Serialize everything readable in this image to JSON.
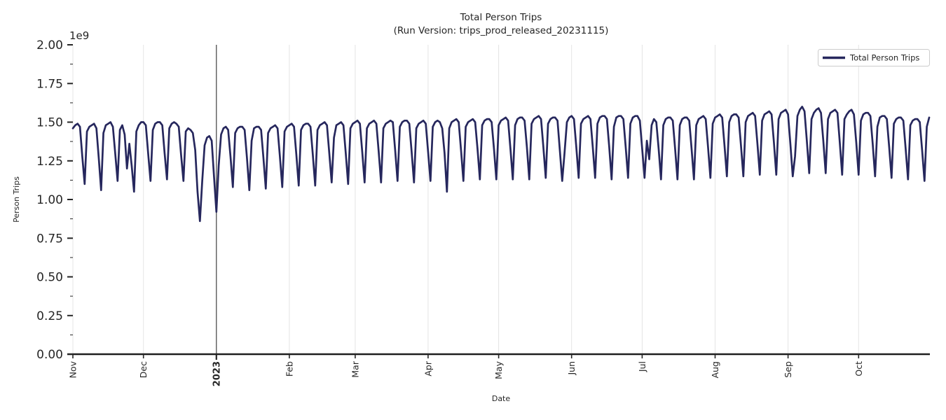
{
  "chart_data": {
    "type": "line",
    "title": "Total Person Trips",
    "subtitle": "(Run Version: trips_prod_released_20231115)",
    "xlabel": "Date",
    "ylabel": "Person Trips",
    "y_offset_label": "1e9",
    "y_unit_multiplier": 1000000000,
    "ylim": [
      0,
      2
    ],
    "y_tick_step": 0.25,
    "y_minor_tick_step": 0.125,
    "y_ticks": [
      "0.00",
      "0.25",
      "0.50",
      "0.75",
      "1.00",
      "1.25",
      "1.50",
      "1.75",
      "2.00"
    ],
    "x_ticks": [
      {
        "label": "Nov",
        "day_offset": 0,
        "year_start": false
      },
      {
        "label": "Dec",
        "day_offset": 30,
        "year_start": false
      },
      {
        "label": "2023",
        "day_offset": 61,
        "year_start": true
      },
      {
        "label": "Feb",
        "day_offset": 92,
        "year_start": false
      },
      {
        "label": "Mar",
        "day_offset": 120,
        "year_start": false
      },
      {
        "label": "Apr",
        "day_offset": 151,
        "year_start": false
      },
      {
        "label": "May",
        "day_offset": 181,
        "year_start": false
      },
      {
        "label": "Jun",
        "day_offset": 212,
        "year_start": false
      },
      {
        "label": "Jul",
        "day_offset": 242,
        "year_start": false
      },
      {
        "label": "Aug",
        "day_offset": 273,
        "year_start": false
      },
      {
        "label": "Sep",
        "day_offset": 304,
        "year_start": false
      },
      {
        "label": "Oct",
        "day_offset": 334,
        "year_start": false
      }
    ],
    "grid": {
      "vertical": true,
      "horizontal": false,
      "color": "#e4e4e4"
    },
    "year_boundary_line": {
      "at_label": "2023",
      "color": "#3d3d3d"
    },
    "legend": {
      "position": "upper right",
      "entries": [
        {
          "label": "Total Person Trips",
          "color": "#26275d"
        }
      ]
    },
    "colors": {
      "line": "#26275d",
      "axis": "#262626",
      "text": "#262626",
      "legend_border": "#cccccc"
    },
    "series": [
      {
        "name": "Total Person Trips",
        "color": "#26275d",
        "start_date": "2022-11-01",
        "end_date": "2023-10-31",
        "frequency": "daily",
        "values_1e9": [
          1.46,
          1.48,
          1.49,
          1.47,
          1.28,
          1.1,
          1.44,
          1.47,
          1.48,
          1.49,
          1.46,
          1.27,
          1.06,
          1.43,
          1.48,
          1.49,
          1.5,
          1.47,
          1.3,
          1.12,
          1.45,
          1.48,
          1.42,
          1.2,
          1.36,
          1.22,
          1.05,
          1.44,
          1.48,
          1.5,
          1.5,
          1.48,
          1.3,
          1.12,
          1.45,
          1.49,
          1.5,
          1.5,
          1.48,
          1.3,
          1.13,
          1.46,
          1.49,
          1.5,
          1.49,
          1.47,
          1.29,
          1.12,
          1.44,
          1.46,
          1.45,
          1.43,
          1.32,
          1.05,
          0.86,
          1.12,
          1.35,
          1.4,
          1.41,
          1.38,
          1.15,
          0.92,
          1.22,
          1.42,
          1.46,
          1.47,
          1.45,
          1.28,
          1.08,
          1.43,
          1.46,
          1.47,
          1.47,
          1.45,
          1.27,
          1.06,
          1.38,
          1.46,
          1.47,
          1.47,
          1.45,
          1.27,
          1.07,
          1.43,
          1.46,
          1.47,
          1.48,
          1.46,
          1.28,
          1.08,
          1.44,
          1.47,
          1.48,
          1.49,
          1.47,
          1.29,
          1.09,
          1.45,
          1.48,
          1.49,
          1.49,
          1.47,
          1.29,
          1.09,
          1.45,
          1.48,
          1.49,
          1.5,
          1.48,
          1.3,
          1.11,
          1.4,
          1.48,
          1.49,
          1.5,
          1.48,
          1.3,
          1.1,
          1.46,
          1.49,
          1.5,
          1.51,
          1.49,
          1.31,
          1.11,
          1.46,
          1.49,
          1.5,
          1.51,
          1.49,
          1.31,
          1.11,
          1.46,
          1.49,
          1.5,
          1.51,
          1.5,
          1.32,
          1.12,
          1.47,
          1.5,
          1.51,
          1.51,
          1.49,
          1.31,
          1.11,
          1.46,
          1.49,
          1.5,
          1.51,
          1.49,
          1.31,
          1.12,
          1.47,
          1.5,
          1.51,
          1.5,
          1.46,
          1.3,
          1.05,
          1.46,
          1.5,
          1.51,
          1.52,
          1.5,
          1.32,
          1.12,
          1.47,
          1.5,
          1.51,
          1.52,
          1.5,
          1.33,
          1.13,
          1.48,
          1.51,
          1.52,
          1.52,
          1.5,
          1.33,
          1.13,
          1.48,
          1.51,
          1.52,
          1.53,
          1.51,
          1.33,
          1.13,
          1.48,
          1.52,
          1.53,
          1.53,
          1.51,
          1.34,
          1.13,
          1.49,
          1.52,
          1.53,
          1.54,
          1.52,
          1.34,
          1.14,
          1.49,
          1.52,
          1.53,
          1.53,
          1.51,
          1.32,
          1.12,
          1.3,
          1.5,
          1.53,
          1.54,
          1.52,
          1.34,
          1.14,
          1.49,
          1.52,
          1.53,
          1.54,
          1.52,
          1.34,
          1.14,
          1.49,
          1.53,
          1.54,
          1.54,
          1.52,
          1.34,
          1.13,
          1.47,
          1.53,
          1.54,
          1.54,
          1.52,
          1.34,
          1.14,
          1.49,
          1.53,
          1.54,
          1.54,
          1.51,
          1.33,
          1.14,
          1.38,
          1.26,
          1.48,
          1.52,
          1.5,
          1.33,
          1.13,
          1.48,
          1.52,
          1.53,
          1.53,
          1.51,
          1.33,
          1.13,
          1.48,
          1.52,
          1.53,
          1.53,
          1.51,
          1.33,
          1.13,
          1.48,
          1.52,
          1.53,
          1.54,
          1.52,
          1.34,
          1.14,
          1.49,
          1.53,
          1.54,
          1.55,
          1.53,
          1.35,
          1.15,
          1.5,
          1.54,
          1.55,
          1.55,
          1.53,
          1.35,
          1.15,
          1.5,
          1.54,
          1.55,
          1.56,
          1.54,
          1.36,
          1.16,
          1.51,
          1.55,
          1.56,
          1.57,
          1.55,
          1.37,
          1.16,
          1.52,
          1.56,
          1.57,
          1.58,
          1.55,
          1.36,
          1.15,
          1.28,
          1.54,
          1.58,
          1.6,
          1.57,
          1.38,
          1.17,
          1.52,
          1.56,
          1.58,
          1.59,
          1.56,
          1.38,
          1.17,
          1.52,
          1.56,
          1.57,
          1.58,
          1.56,
          1.37,
          1.16,
          1.52,
          1.55,
          1.57,
          1.58,
          1.55,
          1.37,
          1.16,
          1.51,
          1.55,
          1.56,
          1.56,
          1.54,
          1.36,
          1.15,
          1.47,
          1.53,
          1.54,
          1.54,
          1.52,
          1.34,
          1.14,
          1.49,
          1.52,
          1.53,
          1.53,
          1.51,
          1.33,
          1.13,
          1.48,
          1.51,
          1.52,
          1.52,
          1.5,
          1.32,
          1.12,
          1.47,
          1.53
        ]
      }
    ]
  }
}
